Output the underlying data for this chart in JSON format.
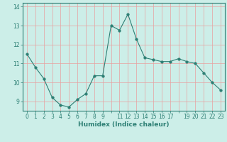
{
  "x": [
    0,
    1,
    2,
    3,
    4,
    5,
    6,
    7,
    8,
    9,
    10,
    11,
    12,
    13,
    14,
    15,
    16,
    17,
    18,
    19,
    20,
    21,
    22,
    23
  ],
  "y": [
    11.5,
    10.8,
    10.2,
    9.2,
    8.8,
    8.7,
    9.1,
    9.4,
    10.35,
    10.35,
    13.0,
    12.75,
    13.6,
    12.3,
    11.3,
    11.2,
    11.1,
    11.1,
    11.25,
    11.1,
    11.0,
    10.5,
    10.0,
    9.6
  ],
  "line_color": "#2d7f74",
  "marker_size": 2.5,
  "background_color": "#cceee8",
  "grid_color": "#e8a0a0",
  "xlabel": "Humidex (Indice chaleur)",
  "ylim": [
    8.5,
    14.2
  ],
  "xlim": [
    -0.5,
    23.5
  ],
  "yticks": [
    9,
    10,
    11,
    12,
    13,
    14
  ],
  "xtick_labels": [
    "0",
    "1",
    "2",
    "3",
    "4",
    "5",
    "6",
    "7",
    "8",
    "9",
    "",
    "11",
    "12",
    "13",
    "14",
    "15",
    "16",
    "17",
    "",
    "19",
    "20",
    "21",
    "22",
    "23"
  ],
  "xticks": [
    0,
    1,
    2,
    3,
    4,
    5,
    6,
    7,
    8,
    9,
    10,
    11,
    12,
    13,
    14,
    15,
    16,
    17,
    18,
    19,
    20,
    21,
    22,
    23
  ],
  "label_fontsize": 6.5,
  "tick_fontsize": 5.5
}
